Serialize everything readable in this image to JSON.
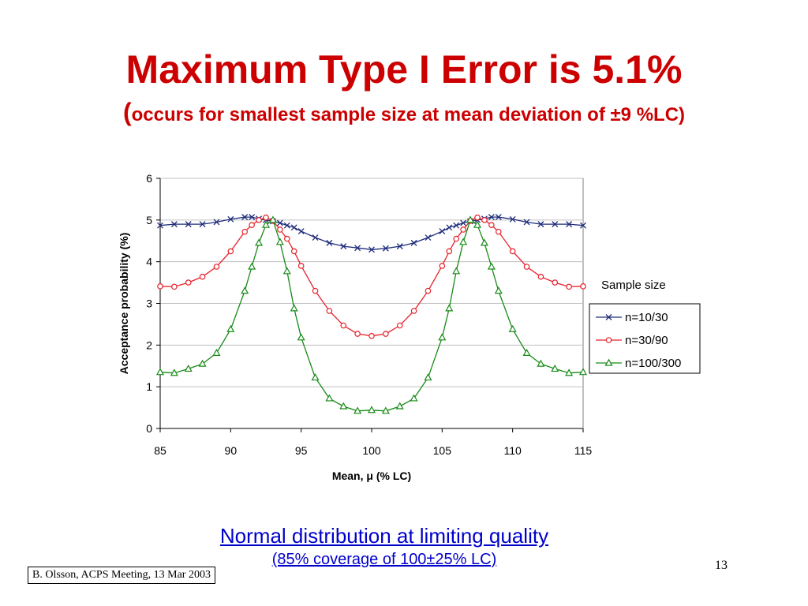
{
  "slide": {
    "title": "Maximum Type I Error is 5.1%",
    "subtitle_paren_open": "(",
    "subtitle_text": "occurs for smallest sample size at mean deviation of ±9 %LC)",
    "note_line1": "Normal distribution at limiting quality",
    "note_line2": "(85% coverage of 100±25% LC)",
    "page_number": "13",
    "citation": "B. Olsson, ACPS Meeting, 13 Mar 2003"
  },
  "colors": {
    "title": "#cc0000",
    "note": "#0000cc",
    "series": [
      "#1f2d7a",
      "#e8202a",
      "#178a17"
    ]
  },
  "chart_data": {
    "type": "line",
    "xlabel": "Mean, μ (% LC)",
    "ylabel": "Acceptance probability (%)",
    "xlim": [
      85,
      115
    ],
    "ylim": [
      0,
      6
    ],
    "x_ticks": [
      85,
      90,
      95,
      100,
      105,
      110,
      115
    ],
    "y_ticks": [
      0,
      1,
      2,
      3,
      4,
      5,
      6
    ],
    "grid": "horizontal",
    "legend_title": "Sample size",
    "legend_position": "right",
    "series": [
      {
        "name": "n=10/30",
        "marker": "x",
        "x": [
          85,
          86,
          87,
          88,
          89,
          90,
          91,
          91.5,
          92,
          92.5,
          93,
          93.5,
          94,
          94.5,
          95,
          96,
          97,
          98,
          99,
          100,
          101,
          102,
          103,
          104,
          105,
          105.5,
          106,
          106.5,
          107,
          107.5,
          108,
          108.5,
          109,
          110,
          111,
          112,
          113,
          114,
          115
        ],
        "y": [
          4.87,
          4.9,
          4.9,
          4.9,
          4.95,
          5.02,
          5.07,
          5.07,
          5.03,
          5.0,
          4.97,
          4.93,
          4.87,
          4.82,
          4.73,
          4.58,
          4.45,
          4.37,
          4.33,
          4.29,
          4.32,
          4.37,
          4.45,
          4.58,
          4.73,
          4.82,
          4.87,
          4.93,
          4.97,
          5.0,
          5.03,
          5.07,
          5.07,
          5.02,
          4.95,
          4.9,
          4.9,
          4.9,
          4.87
        ]
      },
      {
        "name": "n=30/90",
        "marker": "circle",
        "x": [
          85,
          86,
          87,
          88,
          89,
          90,
          91,
          91.5,
          92,
          92.5,
          93,
          93.5,
          94,
          94.5,
          95,
          96,
          97,
          98,
          99,
          100,
          101,
          102,
          103,
          104,
          105,
          105.5,
          106,
          106.5,
          107,
          107.5,
          108,
          108.5,
          109,
          110,
          111,
          112,
          113,
          114,
          115
        ],
        "y": [
          3.41,
          3.4,
          3.5,
          3.64,
          3.88,
          4.25,
          4.72,
          4.88,
          5.0,
          5.06,
          4.98,
          4.77,
          4.55,
          4.25,
          3.9,
          3.3,
          2.82,
          2.47,
          2.27,
          2.22,
          2.27,
          2.47,
          2.82,
          3.3,
          3.9,
          4.25,
          4.55,
          4.77,
          4.98,
          5.06,
          5.0,
          4.88,
          4.72,
          4.25,
          3.88,
          3.64,
          3.5,
          3.4,
          3.41
        ]
      },
      {
        "name": "n=100/300",
        "marker": "triangle",
        "x": [
          85,
          86,
          87,
          88,
          89,
          90,
          91,
          91.5,
          92,
          92.5,
          93,
          93.5,
          94,
          94.5,
          95,
          96,
          97,
          98,
          99,
          100,
          101,
          102,
          103,
          104,
          105,
          105.5,
          106,
          106.5,
          107,
          107.5,
          108,
          108.5,
          109,
          110,
          111,
          112,
          113,
          114,
          115
        ],
        "y": [
          1.35,
          1.33,
          1.43,
          1.55,
          1.81,
          2.38,
          3.3,
          3.88,
          4.45,
          4.88,
          5.0,
          4.47,
          3.77,
          2.88,
          2.18,
          1.22,
          0.72,
          0.53,
          0.42,
          0.44,
          0.42,
          0.53,
          0.72,
          1.22,
          2.18,
          2.88,
          3.77,
          4.47,
          5.0,
          4.88,
          4.45,
          3.88,
          3.3,
          2.38,
          1.81,
          1.55,
          1.43,
          1.33,
          1.35
        ]
      }
    ]
  }
}
